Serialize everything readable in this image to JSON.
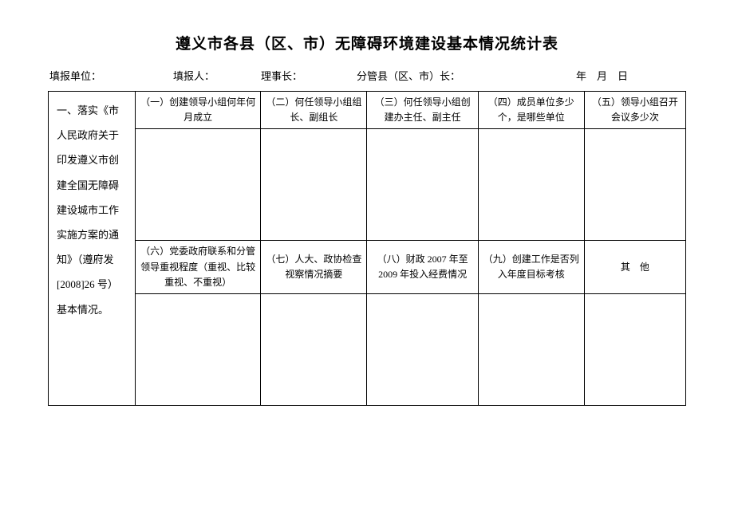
{
  "title": "遵义市各县（区、市）无障碍环境建设基本情况统计表",
  "header": {
    "unit_label": "填报单位：",
    "reporter_label": "填报人：",
    "director_label": "理事长：",
    "leader_label": "分管县（区、市）长：",
    "date_label": "年　月　日"
  },
  "row_label": "一、落实《市人民政府关于印发遵义市创建全国无障碍建设城市工作实施方案的通知》（遵府发[2008]26 号）基本情况。",
  "columns_top": [
    "（一）创建领导小组何年何月成立",
    "（二）何任领导小组组长、副组长",
    "（三）何任领导小组创建办主任、副主任",
    "（四）成员单位多少个，是哪些单位",
    "（五）领导小组召开会议多少次"
  ],
  "columns_bottom": [
    "（六）党委政府联系和分管领导重视程度（重视、比较重视、不重视）",
    "（七）人大、政协检查视察情况摘要",
    "（八）财政 2007 年至2009 年投入经费情况",
    "（九）创建工作是否列入年度目标考核",
    "其　他"
  ],
  "cells_top": [
    "",
    "",
    "",
    "",
    ""
  ],
  "cells_bottom": [
    "",
    "",
    "",
    "",
    ""
  ],
  "style": {
    "background_color": "#ffffff",
    "border_color": "#000000",
    "title_fontsize": 19,
    "body_fontsize": 12,
    "header_fontsize": 13
  }
}
